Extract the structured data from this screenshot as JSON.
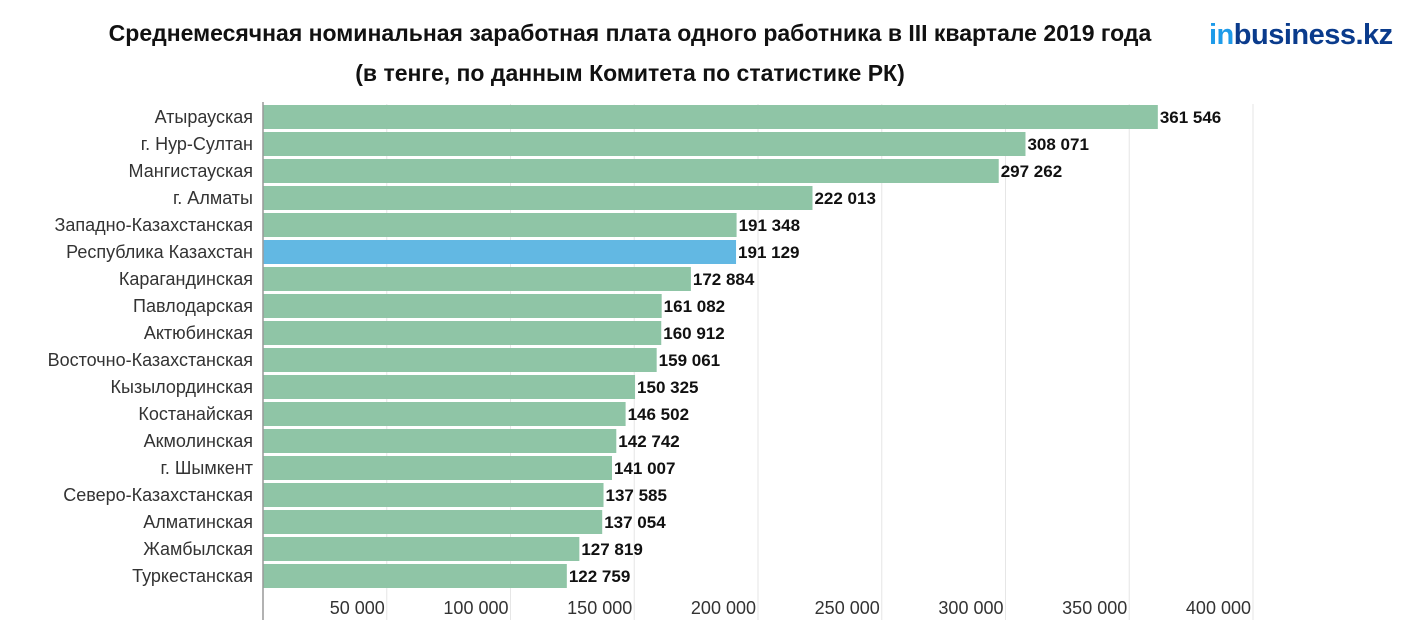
{
  "header": {
    "title_line1": "Среднемесячная номинальная заработная плата одного работника в III квартале 2019 года",
    "title_line2": "(в тенге, по данным Комитета по статистике РК)",
    "logo_prefix": "in",
    "logo_rest": "business.kz"
  },
  "colors": {
    "bar": "#8fc5a6",
    "highlight_bar": "#62b8e3",
    "grid": "#e6e6e6",
    "axis": "#999999",
    "logo_in": "#1e9be9",
    "logo_rest": "#0a3b8c"
  },
  "chart_data": {
    "type": "bar",
    "orientation": "horizontal",
    "title": "Среднемесячная номинальная заработная плата одного работника в III квартале 2019 года",
    "subtitle": "(в тенге, по данным Комитета по статистике РК)",
    "categories": [
      "Атырауская",
      "г. Нур-Султан",
      "Мангистауская",
      "г. Алматы",
      "Западно-Казахстанская",
      "Республика Казахстан",
      "Карагандинская",
      "Павлодарская",
      "Актюбинская",
      "Восточно-Казахстанская",
      "Кызылординская",
      "Костанайская",
      "Акмолинская",
      "г. Шымкент",
      "Северо-Казахстанская",
      "Алматинская",
      "Жамбылская",
      "Туркестанская"
    ],
    "values": [
      361546,
      308071,
      297262,
      222013,
      191348,
      191129,
      172884,
      161082,
      160912,
      159061,
      150325,
      146502,
      142742,
      141007,
      137585,
      137054,
      127819,
      122759
    ],
    "value_labels": [
      "361 546",
      "308 071",
      "297 262",
      "222 013",
      "191 348",
      "191 129",
      "172 884",
      "161 082",
      "160 912",
      "159 061",
      "150 325",
      "146 502",
      "142 742",
      "141 007",
      "137 585",
      "137 054",
      "127 819",
      "122 759"
    ],
    "highlight_category": "Республика Казахстан",
    "xlim": [
      0,
      400000
    ],
    "x_ticks": [
      50000,
      100000,
      150000,
      200000,
      250000,
      300000,
      350000,
      400000
    ],
    "x_tick_labels": [
      "50 000",
      "100 000",
      "150 000",
      "200 000",
      "250 000",
      "300 000",
      "350 000",
      "400 000"
    ],
    "grid": true
  }
}
